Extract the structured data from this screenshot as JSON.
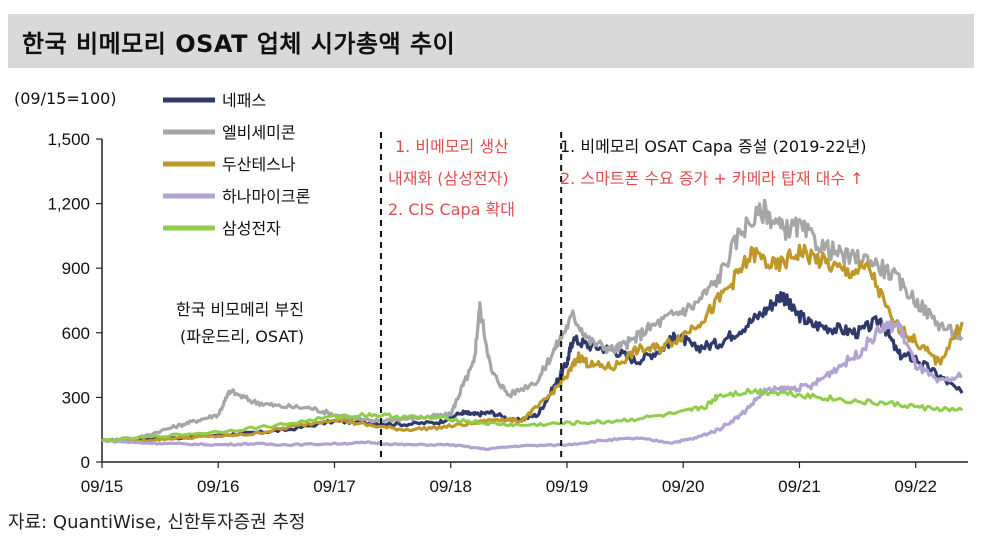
{
  "title": "한국 비메모리 OSAT 업체 시가총액 추이",
  "source": "자료: QuantiWise, 신한투자증권 추정",
  "chart_data": {
    "type": "line",
    "unit_label": "(09/15=100)",
    "x_ticks": [
      "09/15",
      "09/16",
      "09/17",
      "09/18",
      "09/19",
      "09/20",
      "09/21",
      "09/22"
    ],
    "y_ticks": [
      "0",
      "300",
      "600",
      "900",
      "1,200",
      "1,500"
    ],
    "ylim": [
      0,
      1500
    ],
    "xlim": [
      0,
      7.45
    ],
    "grid": false,
    "legend_position": "top-left",
    "series": [
      {
        "name": "네패스",
        "color": "#2f3a6b",
        "points": [
          [
            0,
            100
          ],
          [
            0.3,
            105
          ],
          [
            0.6,
            110
          ],
          [
            1.0,
            125
          ],
          [
            1.3,
            135
          ],
          [
            1.6,
            150
          ],
          [
            2.0,
            190
          ],
          [
            2.3,
            180
          ],
          [
            2.6,
            175
          ],
          [
            2.9,
            185
          ],
          [
            3.1,
            230
          ],
          [
            3.2,
            220
          ],
          [
            3.35,
            230
          ],
          [
            3.55,
            190
          ],
          [
            3.75,
            220
          ],
          [
            3.9,
            360
          ],
          [
            4.0,
            460
          ],
          [
            4.05,
            570
          ],
          [
            4.2,
            540
          ],
          [
            4.4,
            520
          ],
          [
            4.6,
            470
          ],
          [
            4.8,
            520
          ],
          [
            4.95,
            590
          ],
          [
            5.1,
            530
          ],
          [
            5.3,
            550
          ],
          [
            5.5,
            620
          ],
          [
            5.7,
            700
          ],
          [
            5.85,
            780
          ],
          [
            5.95,
            700
          ],
          [
            6.1,
            640
          ],
          [
            6.3,
            620
          ],
          [
            6.5,
            600
          ],
          [
            6.7,
            660
          ],
          [
            6.85,
            500
          ],
          [
            7.0,
            480
          ],
          [
            7.2,
            400
          ],
          [
            7.4,
            320
          ]
        ]
      },
      {
        "name": "엘비세미콘",
        "color": "#a6a6a6",
        "points": [
          [
            0,
            100
          ],
          [
            0.3,
            110
          ],
          [
            0.6,
            160
          ],
          [
            0.8,
            190
          ],
          [
            1.0,
            220
          ],
          [
            1.1,
            330
          ],
          [
            1.3,
            280
          ],
          [
            1.5,
            260
          ],
          [
            1.8,
            250
          ],
          [
            2.0,
            220
          ],
          [
            2.3,
            190
          ],
          [
            2.6,
            200
          ],
          [
            2.8,
            210
          ],
          [
            3.0,
            220
          ],
          [
            3.1,
            350
          ],
          [
            3.2,
            460
          ],
          [
            3.25,
            720
          ],
          [
            3.35,
            420
          ],
          [
            3.5,
            310
          ],
          [
            3.75,
            380
          ],
          [
            3.9,
            530
          ],
          [
            4.05,
            680
          ],
          [
            4.2,
            560
          ],
          [
            4.4,
            520
          ],
          [
            4.55,
            560
          ],
          [
            4.7,
            620
          ],
          [
            4.9,
            680
          ],
          [
            5.1,
            730
          ],
          [
            5.3,
            850
          ],
          [
            5.5,
            1080
          ],
          [
            5.7,
            1170
          ],
          [
            5.85,
            1080
          ],
          [
            6.0,
            1090
          ],
          [
            6.2,
            1000
          ],
          [
            6.4,
            950
          ],
          [
            6.6,
            940
          ],
          [
            6.8,
            870
          ],
          [
            7.0,
            750
          ],
          [
            7.2,
            640
          ],
          [
            7.4,
            580
          ]
        ]
      },
      {
        "name": "두산테스나",
        "color": "#c0982a",
        "points": [
          [
            0,
            100
          ],
          [
            0.3,
            95
          ],
          [
            0.6,
            110
          ],
          [
            1.0,
            120
          ],
          [
            1.3,
            130
          ],
          [
            1.6,
            160
          ],
          [
            2.0,
            200
          ],
          [
            2.3,
            170
          ],
          [
            2.6,
            150
          ],
          [
            2.9,
            160
          ],
          [
            3.2,
            180
          ],
          [
            3.4,
            200
          ],
          [
            3.6,
            190
          ],
          [
            3.8,
            280
          ],
          [
            4.0,
            400
          ],
          [
            4.1,
            490
          ],
          [
            4.2,
            450
          ],
          [
            4.4,
            440
          ],
          [
            4.6,
            520
          ],
          [
            4.8,
            530
          ],
          [
            5.0,
            590
          ],
          [
            5.2,
            680
          ],
          [
            5.4,
            820
          ],
          [
            5.6,
            970
          ],
          [
            5.8,
            900
          ],
          [
            6.0,
            980
          ],
          [
            6.2,
            930
          ],
          [
            6.4,
            880
          ],
          [
            6.6,
            900
          ],
          [
            6.8,
            650
          ],
          [
            7.0,
            560
          ],
          [
            7.2,
            460
          ],
          [
            7.4,
            650
          ]
        ]
      },
      {
        "name": "하나마이크론",
        "color": "#b3a3d3",
        "points": [
          [
            0,
            100
          ],
          [
            0.3,
            90
          ],
          [
            0.6,
            85
          ],
          [
            1.0,
            80
          ],
          [
            1.3,
            85
          ],
          [
            1.6,
            80
          ],
          [
            2.0,
            85
          ],
          [
            2.3,
            90
          ],
          [
            2.6,
            80
          ],
          [
            3.0,
            80
          ],
          [
            3.3,
            60
          ],
          [
            3.6,
            75
          ],
          [
            4.0,
            80
          ],
          [
            4.3,
            100
          ],
          [
            4.6,
            110
          ],
          [
            4.9,
            90
          ],
          [
            5.1,
            110
          ],
          [
            5.3,
            150
          ],
          [
            5.5,
            220
          ],
          [
            5.7,
            330
          ],
          [
            5.9,
            340
          ],
          [
            6.1,
            350
          ],
          [
            6.3,
            430
          ],
          [
            6.5,
            500
          ],
          [
            6.7,
            620
          ],
          [
            6.85,
            640
          ],
          [
            7.0,
            450
          ],
          [
            7.2,
            370
          ],
          [
            7.4,
            400
          ]
        ]
      },
      {
        "name": "삼성전자",
        "color": "#8fce4a",
        "points": [
          [
            0,
            100
          ],
          [
            0.5,
            120
          ],
          [
            1.0,
            140
          ],
          [
            1.5,
            170
          ],
          [
            2.0,
            210
          ],
          [
            2.3,
            220
          ],
          [
            2.6,
            210
          ],
          [
            3.0,
            200
          ],
          [
            3.3,
            180
          ],
          [
            3.6,
            170
          ],
          [
            4.0,
            180
          ],
          [
            4.3,
            185
          ],
          [
            4.6,
            200
          ],
          [
            5.0,
            230
          ],
          [
            5.2,
            260
          ],
          [
            5.3,
            310
          ],
          [
            5.6,
            330
          ],
          [
            5.9,
            320
          ],
          [
            6.2,
            300
          ],
          [
            6.5,
            280
          ],
          [
            6.8,
            270
          ],
          [
            7.1,
            250
          ],
          [
            7.4,
            240
          ]
        ]
      }
    ],
    "annotations": {
      "left": [
        "한국 비모메리 부진",
        "(파운드리, OSAT)"
      ],
      "middle": [
        "1. 비메모리 생산",
        "내재화 (삼성전자)",
        "2. CIS Capa 확대"
      ],
      "right": [
        "1. 비메모리 OSAT Capa 증설  (2019-22년)",
        "2. 스마트폰 수요 증가 + 카메라 탑재 대수 ↑"
      ]
    },
    "vlines_at_x": [
      2.4,
      3.95
    ]
  }
}
